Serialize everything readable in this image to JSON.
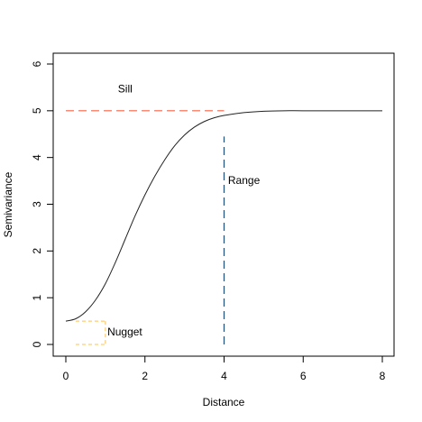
{
  "chart_data": {
    "type": "line",
    "xlabel": "Distance",
    "ylabel": "Semivariance",
    "xlim": [
      0,
      8
    ],
    "ylim": [
      0,
      6
    ],
    "x_ticks": [
      "0",
      "2",
      "4",
      "6",
      "8"
    ],
    "y_ticks": [
      "0",
      "1",
      "2",
      "3",
      "4",
      "5",
      "6"
    ],
    "grid": false,
    "series": [
      {
        "x": [
          0,
          0.25,
          0.5,
          0.75,
          1,
          1.25,
          1.5,
          1.75,
          2,
          2.25,
          2.5,
          2.75,
          3,
          3.25,
          3.5,
          3.75,
          4,
          4.5,
          5,
          5.5,
          6,
          7,
          8
        ],
        "values": [
          0.5,
          0.55,
          0.7,
          0.95,
          1.3,
          1.75,
          2.25,
          2.75,
          3.2,
          3.6,
          3.95,
          4.25,
          4.48,
          4.65,
          4.77,
          4.85,
          4.9,
          4.96,
          4.99,
          5.0,
          5.0,
          5.0,
          5.0
        ]
      }
    ],
    "annotations": {
      "sill": {
        "label": "Sill",
        "value": 5,
        "x_range": [
          0,
          4
        ],
        "label_x": 1.5,
        "label_y": 5.45,
        "color": "#ff6347"
      },
      "range": {
        "label": "Range",
        "value": 4,
        "y_range": [
          0,
          4.45
        ],
        "label_x": 4.1,
        "label_y": 3.5,
        "color": "#1f4e79"
      },
      "nugget": {
        "label": "Nugget",
        "value": 0.5,
        "x_range": [
          0.25,
          1
        ],
        "label_x": 1.05,
        "label_y": 0.25,
        "color": "#ffc04d"
      }
    }
  }
}
